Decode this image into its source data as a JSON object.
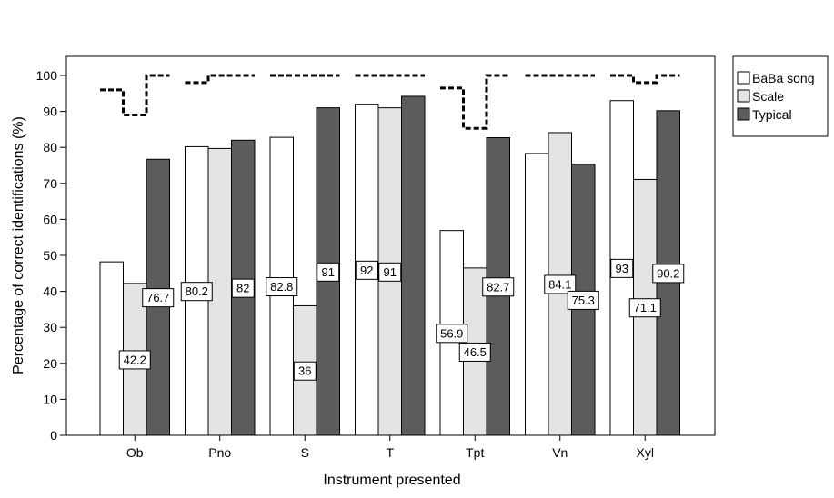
{
  "chart_data": {
    "type": "bar",
    "xlabel": "Instrument presented",
    "ylabel": "Percentage of correct identifications (%)",
    "categories": [
      "Ob",
      "Pno",
      "S",
      "T",
      "Tpt",
      "Vn",
      "Xyl"
    ],
    "ylim": [
      0,
      100
    ],
    "yticks": [
      0,
      10,
      20,
      30,
      40,
      50,
      60,
      70,
      80,
      90,
      100
    ],
    "grid": false,
    "legend_position": "top-right, outside plot",
    "series": [
      {
        "name": "BaBa song",
        "color": "#ffffff",
        "values": [
          48.2,
          80.2,
          82.8,
          92,
          56.9,
          78.3,
          93
        ],
        "labels": [
          "",
          "80.2",
          "82.8",
          "92",
          "56.9",
          "",
          "93"
        ]
      },
      {
        "name": "Scale",
        "color": "#e4e4e4",
        "values": [
          42.2,
          79.7,
          36,
          91,
          46.5,
          84.1,
          71.1
        ],
        "labels": [
          "42.2",
          "",
          "36",
          "91",
          "46.5",
          "84.1",
          "71.1"
        ]
      },
      {
        "name": "Typical",
        "color": "#5c5c5c",
        "values": [
          76.7,
          82,
          91,
          94.2,
          82.7,
          75.3,
          90.2
        ],
        "labels": [
          "76.7",
          "82",
          "91",
          "",
          "82.7",
          "75.3",
          "90.2"
        ]
      }
    ],
    "reference_line": {
      "style": "dashed",
      "values": [
        [
          96,
          89,
          100
        ],
        [
          98,
          100,
          100
        ],
        [
          100,
          100,
          100
        ],
        [
          100,
          100,
          100
        ],
        [
          96.5,
          85.3,
          100
        ],
        [
          100,
          100,
          100
        ],
        [
          100,
          98,
          100
        ]
      ]
    }
  }
}
